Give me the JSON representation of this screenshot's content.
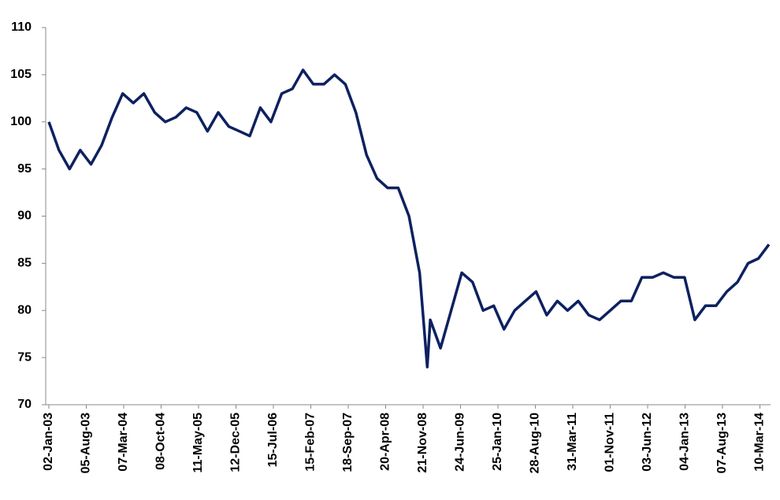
{
  "chart_data": {
    "type": "line",
    "x": [
      "02-Jan-03",
      "01-Mar-03",
      "01-May-03",
      "01-Jul-03",
      "01-Sep-03",
      "01-Nov-03",
      "01-Jan-04",
      "01-Mar-04",
      "01-May-04",
      "01-Jul-04",
      "01-Sep-04",
      "01-Nov-04",
      "01-Jan-05",
      "01-Mar-05",
      "01-May-05",
      "01-Jul-05",
      "01-Sep-05",
      "01-Nov-05",
      "01-Jan-06",
      "01-Mar-06",
      "01-May-06",
      "01-Jul-06",
      "01-Sep-06",
      "01-Nov-06",
      "01-Jan-07",
      "01-Mar-07",
      "01-May-07",
      "01-Jul-07",
      "01-Sep-07",
      "01-Nov-07",
      "01-Jan-08",
      "01-Mar-08",
      "01-May-08",
      "01-Jul-08",
      "01-Sep-08",
      "01-Nov-08",
      "15-Dec-08",
      "01-Jan-09",
      "01-Mar-09",
      "01-May-09",
      "01-Jul-09",
      "01-Sep-09",
      "01-Nov-09",
      "01-Jan-10",
      "01-Mar-10",
      "01-May-10",
      "01-Jul-10",
      "01-Sep-10",
      "01-Nov-10",
      "01-Jan-11",
      "01-Mar-11",
      "01-May-11",
      "01-Jul-11",
      "01-Sep-11",
      "01-Nov-11",
      "01-Jan-12",
      "01-Mar-12",
      "01-May-12",
      "01-Jul-12",
      "01-Sep-12",
      "01-Nov-12",
      "01-Jan-13",
      "01-Mar-13",
      "01-May-13",
      "01-Jul-13",
      "01-Sep-13",
      "01-Nov-13",
      "01-Jan-14",
      "01-Mar-14",
      "01-May-14"
    ],
    "series": [
      {
        "color": "#0d2160",
        "values": [
          100,
          97,
          95,
          97,
          95.5,
          97.5,
          100.5,
          103,
          102,
          103,
          101,
          100,
          100.5,
          101.5,
          101,
          99,
          101,
          99.5,
          99,
          98.5,
          101.5,
          100,
          103,
          103.5,
          105.5,
          104,
          104,
          105,
          104,
          101,
          96.5,
          94,
          93,
          93,
          90,
          84,
          74,
          79,
          76,
          80,
          84,
          83,
          80,
          80.5,
          78,
          80,
          81,
          82,
          79.5,
          81,
          80,
          81,
          79.5,
          79,
          80,
          81,
          81,
          83.5,
          83.5,
          84,
          83.5,
          83.5,
          79,
          80.5,
          80.5,
          82,
          83,
          85,
          85.5,
          87
        ]
      }
    ],
    "xlim": [
      "02-Jan-03",
      "10-May-14"
    ],
    "xticks": [
      "02-Jan-03",
      "05-Aug-03",
      "07-Mar-04",
      "08-Oct-04",
      "11-May-05",
      "12-Dec-05",
      "15-Jul-06",
      "15-Feb-07",
      "18-Sep-07",
      "20-Apr-08",
      "21-Nov-08",
      "24-Jun-09",
      "25-Jan-10",
      "28-Aug-10",
      "31-Mar-11",
      "01-Nov-11",
      "03-Jun-12",
      "04-Jan-13",
      "07-Aug-13",
      "10-Mar-14"
    ],
    "ylim": [
      70,
      110
    ],
    "yticks": [
      70,
      75,
      80,
      85,
      90,
      95,
      100,
      105,
      110
    ]
  }
}
